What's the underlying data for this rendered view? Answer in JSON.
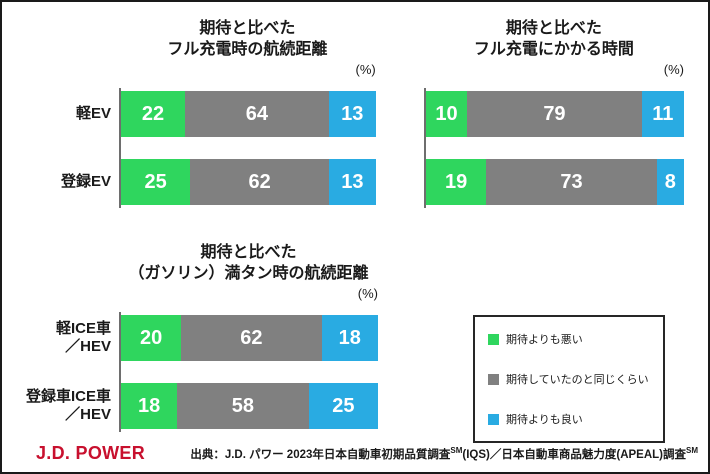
{
  "page": {
    "background": "#ffffff",
    "frame_border_color": "#1a1a1a"
  },
  "chart_data": [
    {
      "type": "bar",
      "orientation": "horizontal_stacked",
      "title": "期待と比べた\nフル充電時の航続距離",
      "unit_label": "(%)",
      "xlim": [
        0,
        100
      ],
      "categories": [
        "軽EV",
        "登録EV"
      ],
      "show_category_labels": true,
      "series": [
        {
          "key": "worse-than-expected",
          "name": "期待よりも悪い",
          "color": "#2FD65E",
          "values": [
            22,
            25
          ]
        },
        {
          "key": "same-as-expected",
          "name": "期待していたのと同じくらい",
          "color": "#808080",
          "values": [
            64,
            62
          ]
        },
        {
          "key": "better-than-expected",
          "name": "期待よりも良い",
          "color": "#29ABE2",
          "values": [
            13,
            13
          ]
        }
      ]
    },
    {
      "type": "bar",
      "orientation": "horizontal_stacked",
      "title": "期待と比べた\nフル充電にかかる時間",
      "unit_label": "(%)",
      "xlim": [
        0,
        100
      ],
      "categories": [
        "軽EV",
        "登録EV"
      ],
      "show_category_labels": false,
      "series": [
        {
          "key": "worse-than-expected",
          "name": "期待よりも悪い",
          "color": "#2FD65E",
          "values": [
            10,
            19
          ]
        },
        {
          "key": "same-as-expected",
          "name": "期待していたのと同じくらい",
          "color": "#808080",
          "values": [
            79,
            73
          ]
        },
        {
          "key": "better-than-expected",
          "name": "期待よりも良い",
          "color": "#29ABE2",
          "values": [
            11,
            8
          ]
        }
      ]
    },
    {
      "type": "bar",
      "orientation": "horizontal_stacked",
      "title": "期待と比べた\n（ガソリン）満タン時の航続距離",
      "unit_label": "(%)",
      "xlim": [
        0,
        100
      ],
      "categories": [
        "軽ICE車\n／HEV",
        "登録車ICE車\n／HEV"
      ],
      "show_category_labels": true,
      "series": [
        {
          "key": "worse-than-expected",
          "name": "期待よりも悪い",
          "color": "#2FD65E",
          "values": [
            20,
            18
          ]
        },
        {
          "key": "same-as-expected",
          "name": "期待していたのと同じくらい",
          "color": "#808080",
          "values": [
            62,
            58
          ]
        },
        {
          "key": "better-than-expected",
          "name": "期待よりも良い",
          "color": "#29ABE2",
          "values": [
            18,
            25
          ]
        }
      ]
    }
  ],
  "legend": {
    "position": "bottom-right",
    "items": [
      {
        "key": "worse-than-expected",
        "label": "期待よりも悪い",
        "color": "#2FD65E"
      },
      {
        "key": "same-as-expected",
        "label": "期待していたのと同じくらい",
        "color": "#808080"
      },
      {
        "key": "better-than-expected",
        "label": "期待よりも良い",
        "color": "#29ABE2"
      }
    ]
  },
  "footer": {
    "logo_text": "J.D. POWER",
    "logo_color": "#C8102E",
    "source": {
      "prefix": "出典：J.D. パワー 2023年日本自動車初期品質調査",
      "sup1": "SM",
      "middle": "(IQS)／日本自動車商品魅力度(APEAL)調査",
      "sup2": "SM"
    }
  }
}
